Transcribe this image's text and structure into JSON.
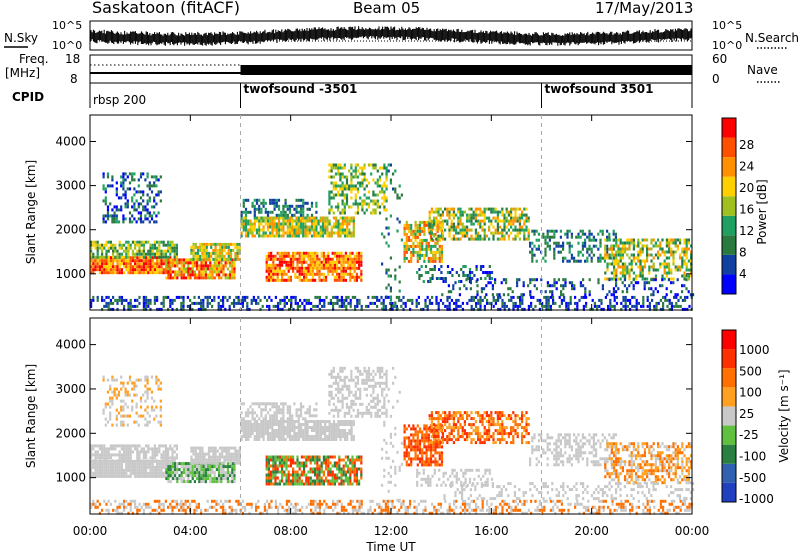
{
  "header": {
    "station": "Saskatoon (fitACF)",
    "beam": "Beam 05",
    "date": "17/May/2013"
  },
  "param_panels": {
    "nsky_label": "N.Sky",
    "nsky_ticks": [
      "10^5",
      "10^0"
    ],
    "nsearch_label": "N.Search",
    "nsearch_ticks": [
      "10^5",
      "10^0"
    ],
    "freq_label_top": "Freq.",
    "freq_label_bottom": "[MHz]",
    "freq_ticks": [
      "18",
      "8"
    ],
    "nave_label": "Nave",
    "nave_ticks": [
      "60",
      "0"
    ],
    "cpid_label": "CPID",
    "cpid_segments": [
      {
        "name": "rbsp 200",
        "start_hour": 0
      },
      {
        "name": "twofsound -3501",
        "start_hour": 6
      },
      {
        "name": "twofsound 3501",
        "start_hour": 18
      }
    ]
  },
  "chart_data": [
    {
      "type": "heatmap",
      "title": "",
      "ylabel": "Slant Range [km]",
      "ylim": [
        180,
        4600
      ],
      "yticks": [
        "1000",
        "2000",
        "3000",
        "4000"
      ],
      "colorbar": {
        "label": "Power [dB]",
        "ticks": [
          "28",
          "24",
          "20",
          "16",
          "12",
          "8",
          "4"
        ],
        "range": [
          0,
          30
        ],
        "colors": [
          "#0000ff",
          "#1040a0",
          "#2a7a40",
          "#20a060",
          "#a0c020",
          "#ffd000",
          "#ff9000",
          "#ff5000",
          "#ff0000"
        ]
      }
    },
    {
      "type": "heatmap",
      "title": "",
      "ylabel": "Slant Range [km]",
      "xlabel": "Time UT",
      "ylim": [
        180,
        4600
      ],
      "yticks": [
        "1000",
        "2000",
        "3000",
        "4000"
      ],
      "xticks": [
        "00:00",
        "04:00",
        "08:00",
        "12:00",
        "16:00",
        "20:00",
        "00:00"
      ],
      "xlim_hours": [
        0,
        24
      ],
      "colorbar": {
        "label": "Velocity [m s⁻¹]",
        "ticks": [
          "1000",
          "500",
          "100",
          "25",
          "-25",
          "-100",
          "-500",
          "-1000"
        ],
        "colors": [
          "#2040c0",
          "#3060b0",
          "#2a8040",
          "#60c040",
          "#c8c8c8",
          "#ffa020",
          "#ff7000",
          "#ff3000",
          "#ff0000"
        ]
      }
    }
  ]
}
